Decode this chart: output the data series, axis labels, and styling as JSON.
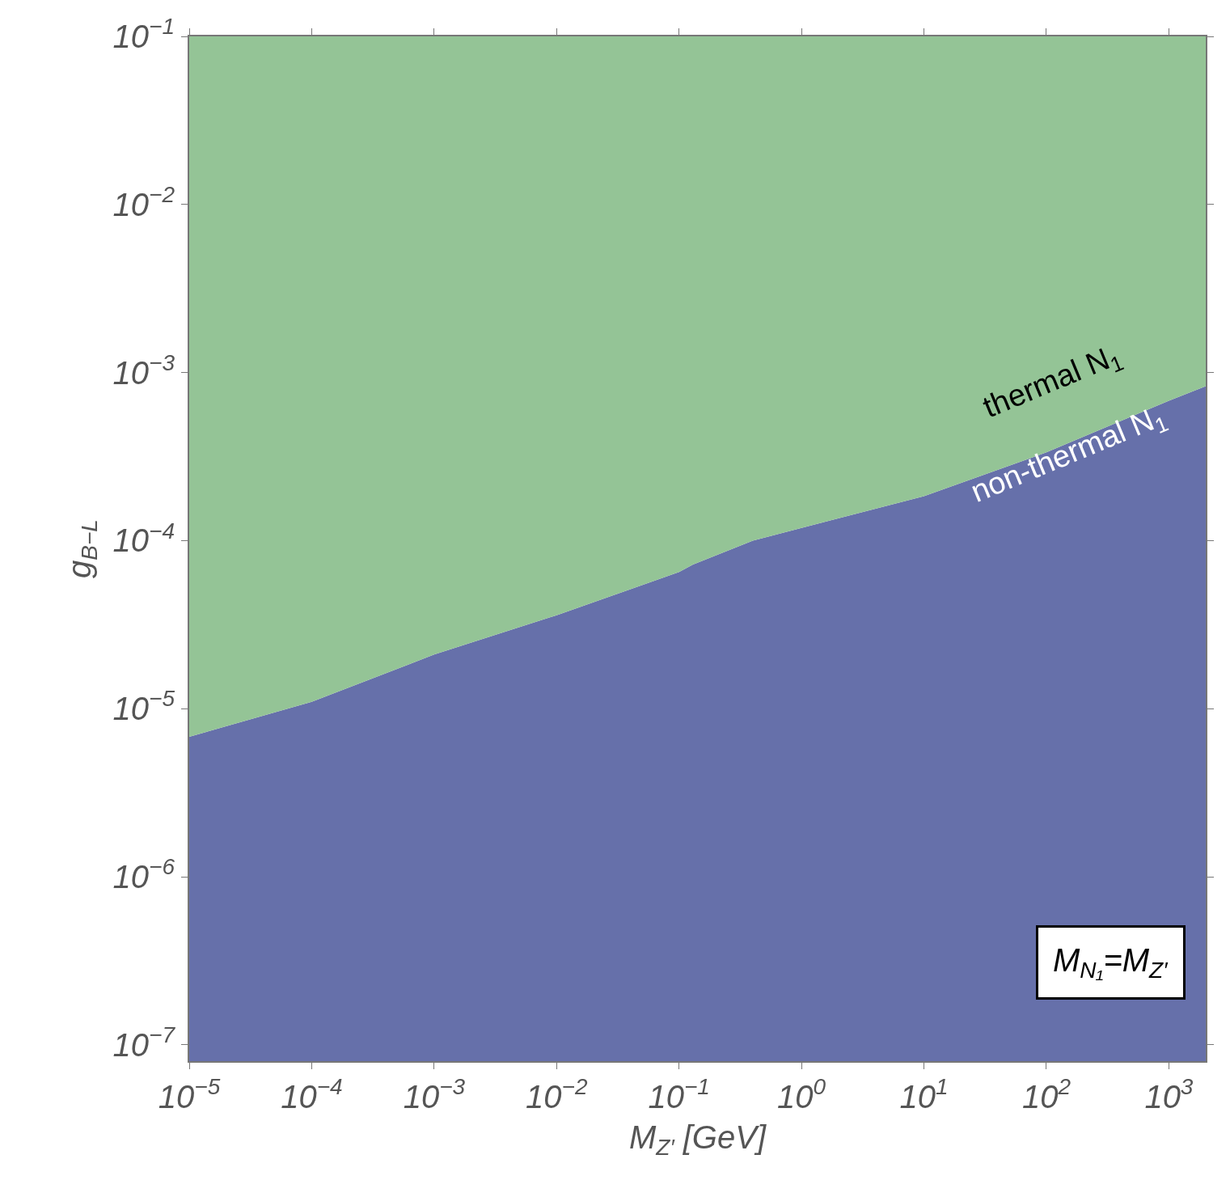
{
  "chart_data": {
    "type": "area",
    "xlabel": "M$_{Z′}$ [GeV]",
    "ylabel": "g$_{B−L}$",
    "x": [
      1e-05,
      0.0001,
      0.001,
      0.01,
      0.1,
      0.13,
      0.4,
      1,
      10,
      100,
      1000,
      2000
    ],
    "series": [
      {
        "name": "non-thermal N$_{1}$",
        "color": "#6670aa",
        "values": [
          6.8e-06,
          1.1e-05,
          2.1e-05,
          3.6e-05,
          6.5e-05,
          7.2e-05,
          0.0001,
          0.000119,
          0.000184,
          0.000335,
          0.00068,
          0.00083
        ]
      },
      {
        "name": "thermal N$_{1}$",
        "color": "#94c496",
        "values": [
          0.1,
          0.1,
          0.1,
          0.1,
          0.1,
          0.1,
          0.1,
          0.1,
          0.1,
          0.1,
          0.1,
          0.1
        ]
      }
    ],
    "annotations": [
      "M$_{N₁}$=M$_{Z′}$"
    ],
    "log": "xy",
    "legend": false,
    "xlim": [
      1e-05,
      2000
    ],
    "ylim": [
      8e-08,
      0.1
    ],
    "xticks": [
      {
        "value": 1e-05,
        "label": "10$^{−5}$"
      },
      {
        "value": 0.0001,
        "label": "10$^{−4}$"
      },
      {
        "value": 0.001,
        "label": "10$^{−3}$"
      },
      {
        "value": 0.01,
        "label": "10$^{−2}$"
      },
      {
        "value": 0.1,
        "label": "10$^{−1}$"
      },
      {
        "value": 1,
        "label": "10$^{0}$"
      },
      {
        "value": 10,
        "label": "10$^{1}$"
      },
      {
        "value": 100,
        "label": "10$^{2}$"
      },
      {
        "value": 1000,
        "label": "10$^{3}$"
      }
    ],
    "yticks": [
      {
        "value": 1e-07,
        "label": "10$^{−7}$"
      },
      {
        "value": 1e-06,
        "label": "10$^{−6}$"
      },
      {
        "value": 1e-05,
        "label": "10$^{−5}$"
      },
      {
        "value": 0.0001,
        "label": "10$^{−4}$"
      },
      {
        "value": 0.001,
        "label": "10$^{−3}$"
      },
      {
        "value": 0.01,
        "label": "10$^{−2}$"
      },
      {
        "value": 0.1,
        "label": "10$^{−1}$"
      }
    ]
  }
}
